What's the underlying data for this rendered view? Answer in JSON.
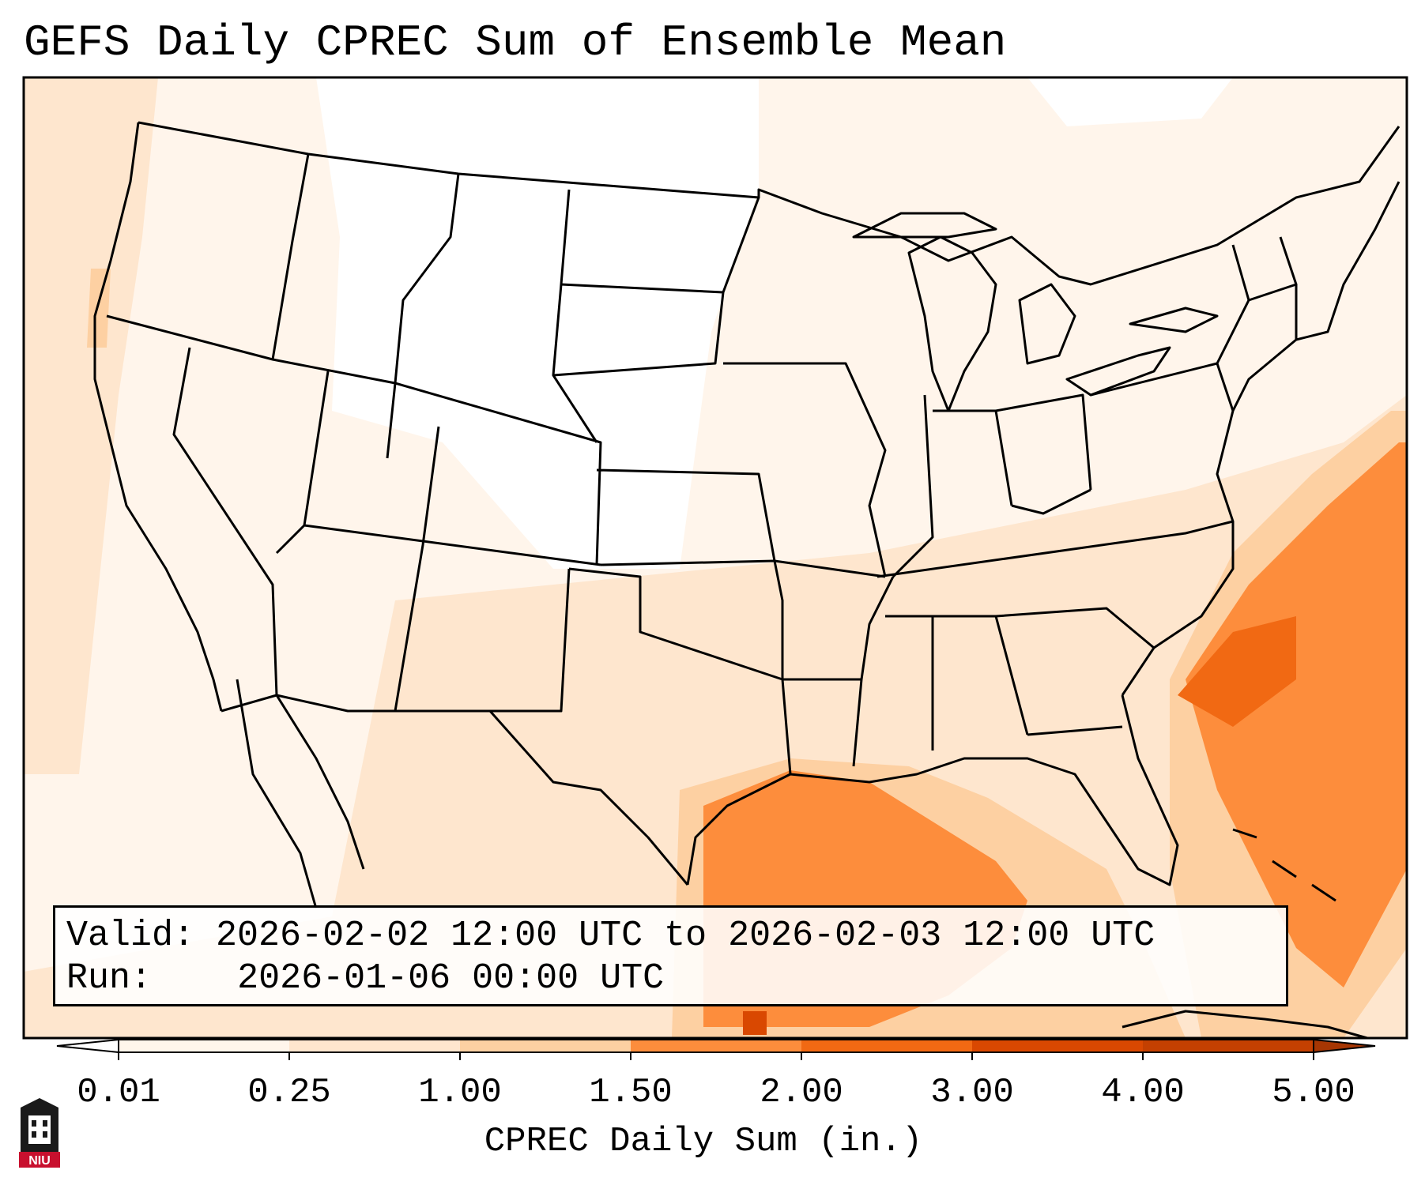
{
  "title": "GEFS Daily CPREC Sum of Ensemble Mean",
  "info": {
    "valid_label": "Valid:",
    "valid_value": "2026-02-02 12:00 UTC to 2026-02-03 12:00 UTC",
    "run_label": "Run:",
    "run_value": "2026-01-06 00:00 UTC"
  },
  "colorbar": {
    "label": "CPREC Daily Sum (in.)",
    "ticks": [
      "0.01",
      "0.25",
      "1.00",
      "1.50",
      "2.00",
      "3.00",
      "4.00",
      "5.00"
    ],
    "colors": [
      "#fff5eb",
      "#fee6ce",
      "#fdd0a2",
      "#fd8d3c",
      "#f16913",
      "#d94801",
      "#a63603"
    ],
    "extend": "both"
  },
  "map": {
    "projection": "Lambert Conformal",
    "region": "Continental United States",
    "precip_colors": {
      "trace": "#fff5eb",
      "light": "#fee6ce",
      "moderate": "#fdd0a2",
      "heavy": "#fd8d3c",
      "very_heavy": "#f16913",
      "extreme": "#d94801"
    }
  },
  "logo": {
    "text": "NIU"
  }
}
